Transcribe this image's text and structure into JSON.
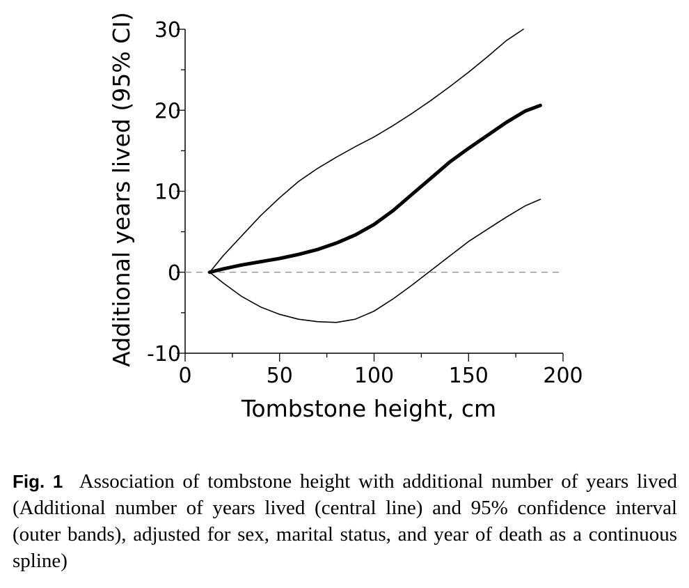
{
  "chart_data": {
    "type": "line",
    "title": "",
    "xlabel": "Tombstone height, cm",
    "ylabel": "Additional years lived (95% CI)",
    "xlim": [
      0,
      200
    ],
    "ylim": [
      -10,
      30
    ],
    "x_ticks": [
      0,
      50,
      100,
      150,
      200
    ],
    "y_ticks": [
      -10,
      0,
      10,
      20,
      30
    ],
    "grid": false,
    "legend": "none",
    "reference_line": {
      "y": 0,
      "style": "dashed",
      "color": "#999999"
    },
    "series": [
      {
        "role": "estimate",
        "color": "#000000",
        "points": [
          [
            13,
            0
          ],
          [
            20,
            0.4
          ],
          [
            30,
            0.9
          ],
          [
            40,
            1.3
          ],
          [
            50,
            1.7
          ],
          [
            60,
            2.2
          ],
          [
            70,
            2.8
          ],
          [
            80,
            3.6
          ],
          [
            90,
            4.6
          ],
          [
            100,
            5.9
          ],
          [
            110,
            7.6
          ],
          [
            120,
            9.6
          ],
          [
            130,
            11.6
          ],
          [
            140,
            13.6
          ],
          [
            150,
            15.3
          ],
          [
            160,
            16.9
          ],
          [
            170,
            18.5
          ],
          [
            180,
            19.9
          ],
          [
            188,
            20.6
          ]
        ]
      },
      {
        "role": "upper_ci",
        "color": "#000000",
        "points": [
          [
            13,
            0
          ],
          [
            20,
            2
          ],
          [
            30,
            4.5
          ],
          [
            40,
            7
          ],
          [
            50,
            9.2
          ],
          [
            60,
            11.2
          ],
          [
            70,
            12.8
          ],
          [
            80,
            14.2
          ],
          [
            90,
            15.5
          ],
          [
            100,
            16.7
          ],
          [
            110,
            18.1
          ],
          [
            120,
            19.6
          ],
          [
            130,
            21.2
          ],
          [
            140,
            22.9
          ],
          [
            150,
            24.7
          ],
          [
            160,
            26.6
          ],
          [
            170,
            28.6
          ],
          [
            179,
            30
          ]
        ]
      },
      {
        "role": "lower_ci",
        "color": "#000000",
        "points": [
          [
            13,
            0
          ],
          [
            20,
            -1.3
          ],
          [
            30,
            -3
          ],
          [
            40,
            -4.3
          ],
          [
            50,
            -5.2
          ],
          [
            60,
            -5.8
          ],
          [
            70,
            -6.1
          ],
          [
            80,
            -6.2
          ],
          [
            90,
            -5.8
          ],
          [
            100,
            -4.8
          ],
          [
            110,
            -3.3
          ],
          [
            120,
            -1.6
          ],
          [
            130,
            0.2
          ],
          [
            140,
            2
          ],
          [
            150,
            3.8
          ],
          [
            160,
            5.3
          ],
          [
            170,
            6.8
          ],
          [
            180,
            8.2
          ],
          [
            188,
            9
          ]
        ]
      }
    ]
  },
  "caption": {
    "label": "Fig. 1",
    "text": "Association of tombstone height with additional number of years lived (Additional number of years lived (central line) and 95% confidence interval (outer bands), adjusted for sex, marital status, and year of death as a continuous spline)"
  }
}
